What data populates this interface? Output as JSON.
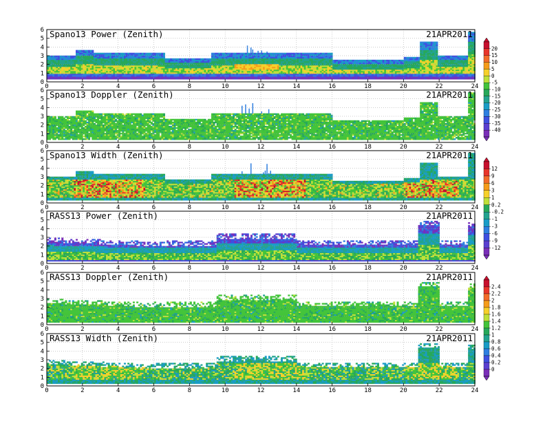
{
  "chart_data": {
    "type": "heatmap",
    "date": "21APR2011",
    "x_range": [
      0,
      24
    ],
    "x_ticks": [
      0,
      2,
      4,
      6,
      8,
      10,
      12,
      14,
      16,
      18,
      20,
      22,
      24
    ],
    "y_range": [
      0,
      6
    ],
    "y_ticks": [
      0,
      1,
      2,
      3,
      4,
      5,
      6
    ],
    "grid": true,
    "panels": [
      {
        "title": "Spano13 Power (Zenith)",
        "colorbar": 0,
        "variable": "power",
        "source": "spano"
      },
      {
        "title": "Spano13 Doppler (Zenith)",
        "colorbar": 0,
        "variable": "doppler",
        "source": "spano"
      },
      {
        "title": "Spano13 Width (Zenith)",
        "colorbar": 1,
        "variable": "width",
        "source": "spano"
      },
      {
        "title": "RASS13 Power (Zenith)",
        "colorbar": 1,
        "variable": "power",
        "source": "rass"
      },
      {
        "title": "RASS13 Doppler (Zenith)",
        "colorbar": 2,
        "variable": "doppler",
        "source": "rass"
      },
      {
        "title": "RASS13 Width (Zenith)",
        "colorbar": 2,
        "variable": "width",
        "source": "rass"
      }
    ],
    "colorbars": [
      {
        "labels": [
          "20",
          "15",
          "10",
          "5",
          "0",
          "-5",
          "-10",
          "-15",
          "-20",
          "-25",
          "-30",
          "-35",
          "-40"
        ]
      },
      {
        "labels": [
          "12",
          "9",
          "6",
          "3",
          "1",
          "0.2",
          "-0.2",
          "-1",
          "-3",
          "-6",
          "-9",
          "-12"
        ]
      },
      {
        "labels": [
          "2.4",
          "2.2",
          "2",
          "1.8",
          "1.6",
          "1.4",
          "1.2",
          "1",
          "0.8",
          "0.6",
          "0.4",
          "0.2",
          "0"
        ]
      }
    ],
    "palette": [
      "#c8102e",
      "#e8352b",
      "#f26b2a",
      "#f59c1a",
      "#f6d02b",
      "#bfe03a",
      "#43c43a",
      "#27a85a",
      "#23a38f",
      "#1a9dc7",
      "#2f7fe0",
      "#3f4fe0",
      "#5a3fd0",
      "#7a2fb8"
    ]
  }
}
